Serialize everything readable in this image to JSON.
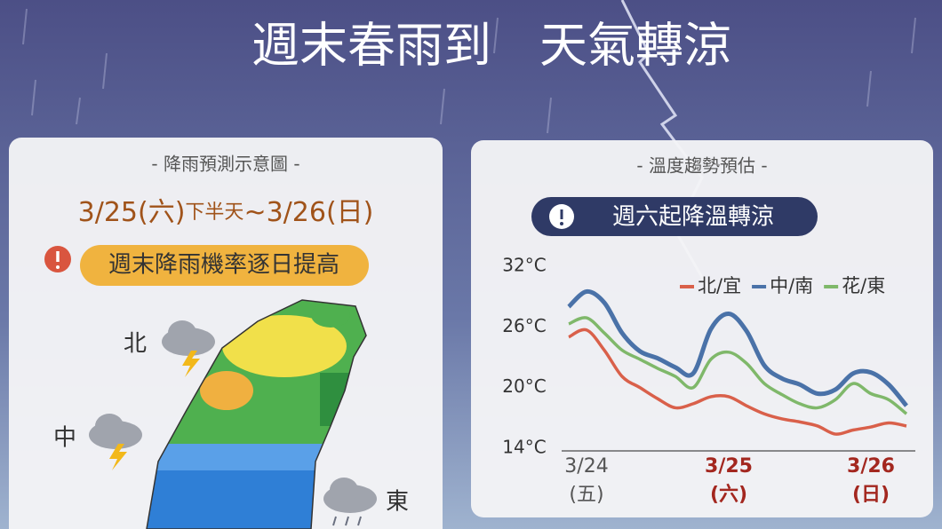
{
  "title": "週末春雨到　天氣轉涼",
  "rain_panel": {
    "header": "- 降雨預測示意圖 -",
    "date_parts": [
      "3/25(六)",
      "下半天",
      "~3/26(日)"
    ],
    "alert": "週末降雨機率逐日提高",
    "regions": [
      "北",
      "中",
      "東"
    ]
  },
  "temp_panel": {
    "header": "- 溫度趨勢預估 -",
    "badge": "週六起降溫轉涼"
  },
  "chart_data": {
    "type": "line",
    "categories": [
      null,
      "3/24\n(五)",
      null,
      null,
      null,
      null,
      null,
      null,
      null,
      "3/25\n(六)",
      null,
      null,
      null,
      null,
      null,
      null,
      null,
      "3/26\n(日)",
      null,
      null
    ],
    "category_colors": [
      "#555555",
      "#555555",
      "#555555",
      "#555555",
      "#555555",
      "#555555",
      "#555555",
      "#555555",
      "#555555",
      "#a3271f",
      "#555555",
      "#555555",
      "#555555",
      "#555555",
      "#555555",
      "#555555",
      "#555555",
      "#a3271f",
      "#555555",
      "#555555"
    ],
    "series": [
      {
        "name": "北/宜",
        "color": "#d9604a",
        "values": [
          25.0,
          25.7,
          23.7,
          21.1,
          20.0,
          18.9,
          18.0,
          18.4,
          19.1,
          19.1,
          18.2,
          17.4,
          16.9,
          16.6,
          16.2,
          15.4,
          15.8,
          16.1,
          16.5,
          16.2
        ]
      },
      {
        "name": "中/南",
        "color": "#4a72a8",
        "values": [
          28.0,
          29.5,
          28.4,
          25.4,
          23.6,
          22.9,
          22.0,
          21.4,
          25.8,
          27.3,
          25.6,
          22.2,
          20.9,
          20.3,
          19.4,
          19.8,
          21.4,
          21.5,
          20.3,
          18.2
        ]
      },
      {
        "name": "花/東",
        "color": "#7fb86a",
        "values": [
          26.3,
          26.9,
          25.4,
          23.7,
          22.8,
          21.9,
          21.1,
          20.0,
          22.8,
          23.5,
          22.4,
          20.4,
          19.3,
          18.4,
          18.0,
          18.8,
          20.4,
          19.4,
          18.8,
          17.4
        ]
      }
    ],
    "ylim": [
      14,
      32
    ],
    "yticks": [
      {
        "value": 32,
        "label": "32°C"
      },
      {
        "value": 26,
        "label": "26°C"
      },
      {
        "value": 20,
        "label": "20°C"
      },
      {
        "value": 14,
        "label": "14°C"
      }
    ],
    "grid": false,
    "legend": "upper right"
  }
}
